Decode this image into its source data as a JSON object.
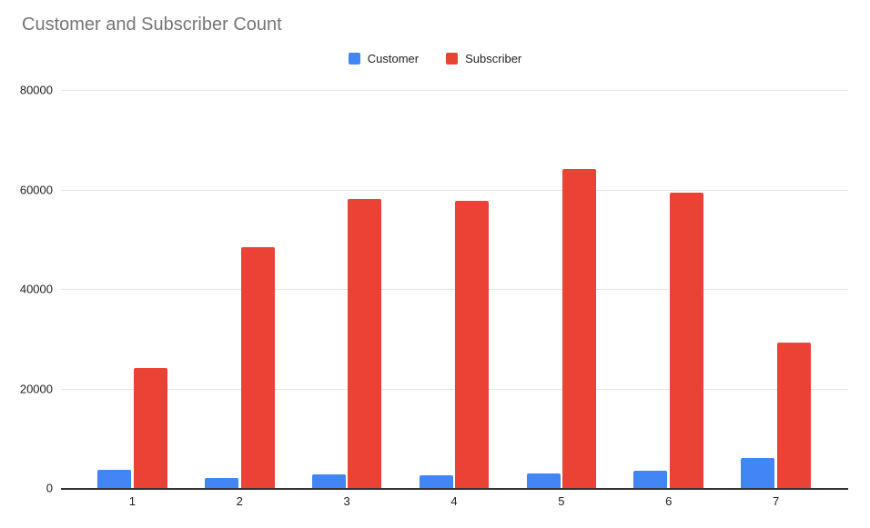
{
  "chart_data": {
    "type": "bar",
    "title": "Customer and Subscriber Count",
    "categories": [
      "1",
      "2",
      "3",
      "4",
      "5",
      "6",
      "7"
    ],
    "series": [
      {
        "name": "Customer",
        "color": "#4285F4",
        "values": [
          3700,
          2100,
          2700,
          2600,
          2900,
          3400,
          6000
        ]
      },
      {
        "name": "Subscriber",
        "color": "#EA4335",
        "values": [
          24200,
          48400,
          58100,
          57800,
          64100,
          59400,
          29200
        ]
      }
    ],
    "xlabel": "",
    "ylabel": "",
    "ylim": [
      0,
      80000
    ],
    "yticks": [
      0,
      20000,
      40000,
      60000,
      80000
    ],
    "grid": true,
    "legend_position": "top-center",
    "colors": {
      "title_text": "#757575",
      "axis_text": "#212121",
      "gridline": "#e6e6e6",
      "baseline": "#333333",
      "background": "#ffffff"
    }
  }
}
